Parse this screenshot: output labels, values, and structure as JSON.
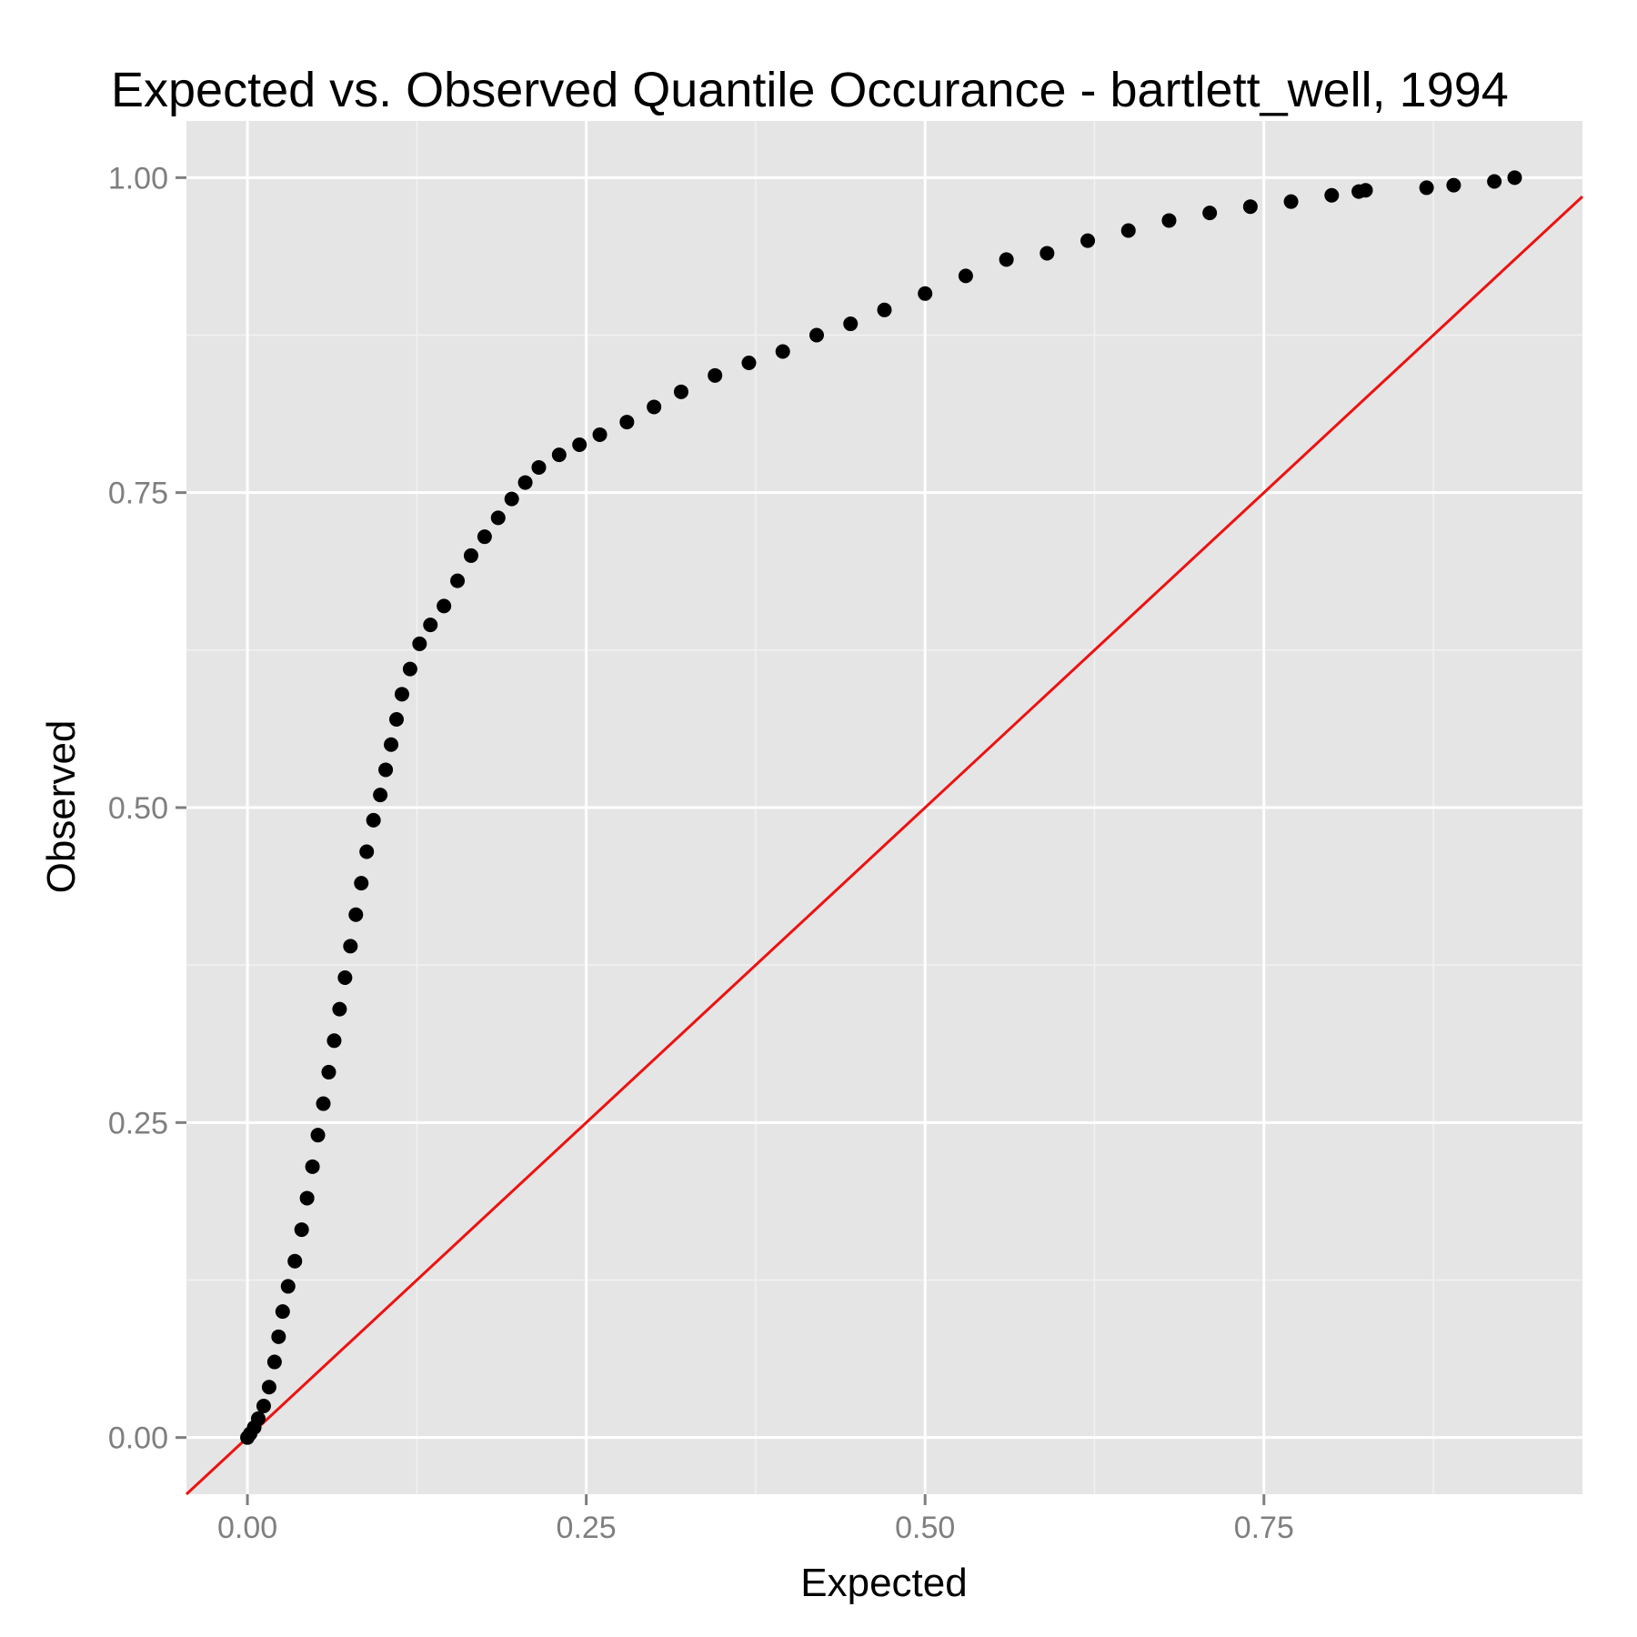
{
  "chart_data": {
    "type": "scatter",
    "title": "Expected vs. Observed Quantile Occurance - bartlett_well, 1994",
    "xlabel": "Expected",
    "ylabel": "Observed",
    "xlim": [
      -0.045,
      0.985
    ],
    "ylim": [
      -0.045,
      1.045
    ],
    "x_ticks": [
      0.0,
      0.25,
      0.5,
      0.75
    ],
    "x_tick_labels": [
      "0.00",
      "0.25",
      "0.50",
      "0.75"
    ],
    "y_ticks": [
      0.0,
      0.25,
      0.5,
      0.75,
      1.0
    ],
    "y_tick_labels": [
      "0.00",
      "0.25",
      "0.50",
      "0.75",
      "1.00"
    ],
    "grid": true,
    "background_color": "#e5e5e5",
    "grid_color": "#ffffff",
    "point_color": "#000000",
    "reference_line": {
      "type": "y=x",
      "color": "#ee1111"
    },
    "series": [
      {
        "points": [
          [
            0.0,
            0.0
          ],
          [
            0.002,
            0.003
          ],
          [
            0.005,
            0.008
          ],
          [
            0.008,
            0.015
          ],
          [
            0.012,
            0.025
          ],
          [
            0.016,
            0.04
          ],
          [
            0.02,
            0.06
          ],
          [
            0.023,
            0.08
          ],
          [
            0.026,
            0.1
          ],
          [
            0.03,
            0.12
          ],
          [
            0.035,
            0.14
          ],
          [
            0.04,
            0.165
          ],
          [
            0.044,
            0.19
          ],
          [
            0.048,
            0.215
          ],
          [
            0.052,
            0.24
          ],
          [
            0.056,
            0.265
          ],
          [
            0.06,
            0.29
          ],
          [
            0.064,
            0.315
          ],
          [
            0.068,
            0.34
          ],
          [
            0.072,
            0.365
          ],
          [
            0.076,
            0.39
          ],
          [
            0.08,
            0.415
          ],
          [
            0.084,
            0.44
          ],
          [
            0.088,
            0.465
          ],
          [
            0.093,
            0.49
          ],
          [
            0.098,
            0.51
          ],
          [
            0.102,
            0.53
          ],
          [
            0.106,
            0.55
          ],
          [
            0.11,
            0.57
          ],
          [
            0.114,
            0.59
          ],
          [
            0.12,
            0.61
          ],
          [
            0.127,
            0.63
          ],
          [
            0.135,
            0.645
          ],
          [
            0.145,
            0.66
          ],
          [
            0.155,
            0.68
          ],
          [
            0.165,
            0.7
          ],
          [
            0.175,
            0.715
          ],
          [
            0.185,
            0.73
          ],
          [
            0.195,
            0.745
          ],
          [
            0.205,
            0.758
          ],
          [
            0.215,
            0.77
          ],
          [
            0.23,
            0.78
          ],
          [
            0.245,
            0.788
          ],
          [
            0.26,
            0.796
          ],
          [
            0.28,
            0.806
          ],
          [
            0.3,
            0.818
          ],
          [
            0.32,
            0.83
          ],
          [
            0.345,
            0.843
          ],
          [
            0.37,
            0.853
          ],
          [
            0.395,
            0.862
          ],
          [
            0.42,
            0.875
          ],
          [
            0.445,
            0.884
          ],
          [
            0.47,
            0.895
          ],
          [
            0.5,
            0.908
          ],
          [
            0.53,
            0.922
          ],
          [
            0.56,
            0.935
          ],
          [
            0.59,
            0.94
          ],
          [
            0.62,
            0.95
          ],
          [
            0.65,
            0.958
          ],
          [
            0.68,
            0.966
          ],
          [
            0.71,
            0.972
          ],
          [
            0.74,
            0.977
          ],
          [
            0.77,
            0.981
          ],
          [
            0.8,
            0.986
          ],
          [
            0.82,
            0.989
          ],
          [
            0.825,
            0.99
          ],
          [
            0.87,
            0.992
          ],
          [
            0.89,
            0.994
          ],
          [
            0.92,
            0.997
          ],
          [
            0.935,
            1.0
          ]
        ]
      }
    ]
  }
}
